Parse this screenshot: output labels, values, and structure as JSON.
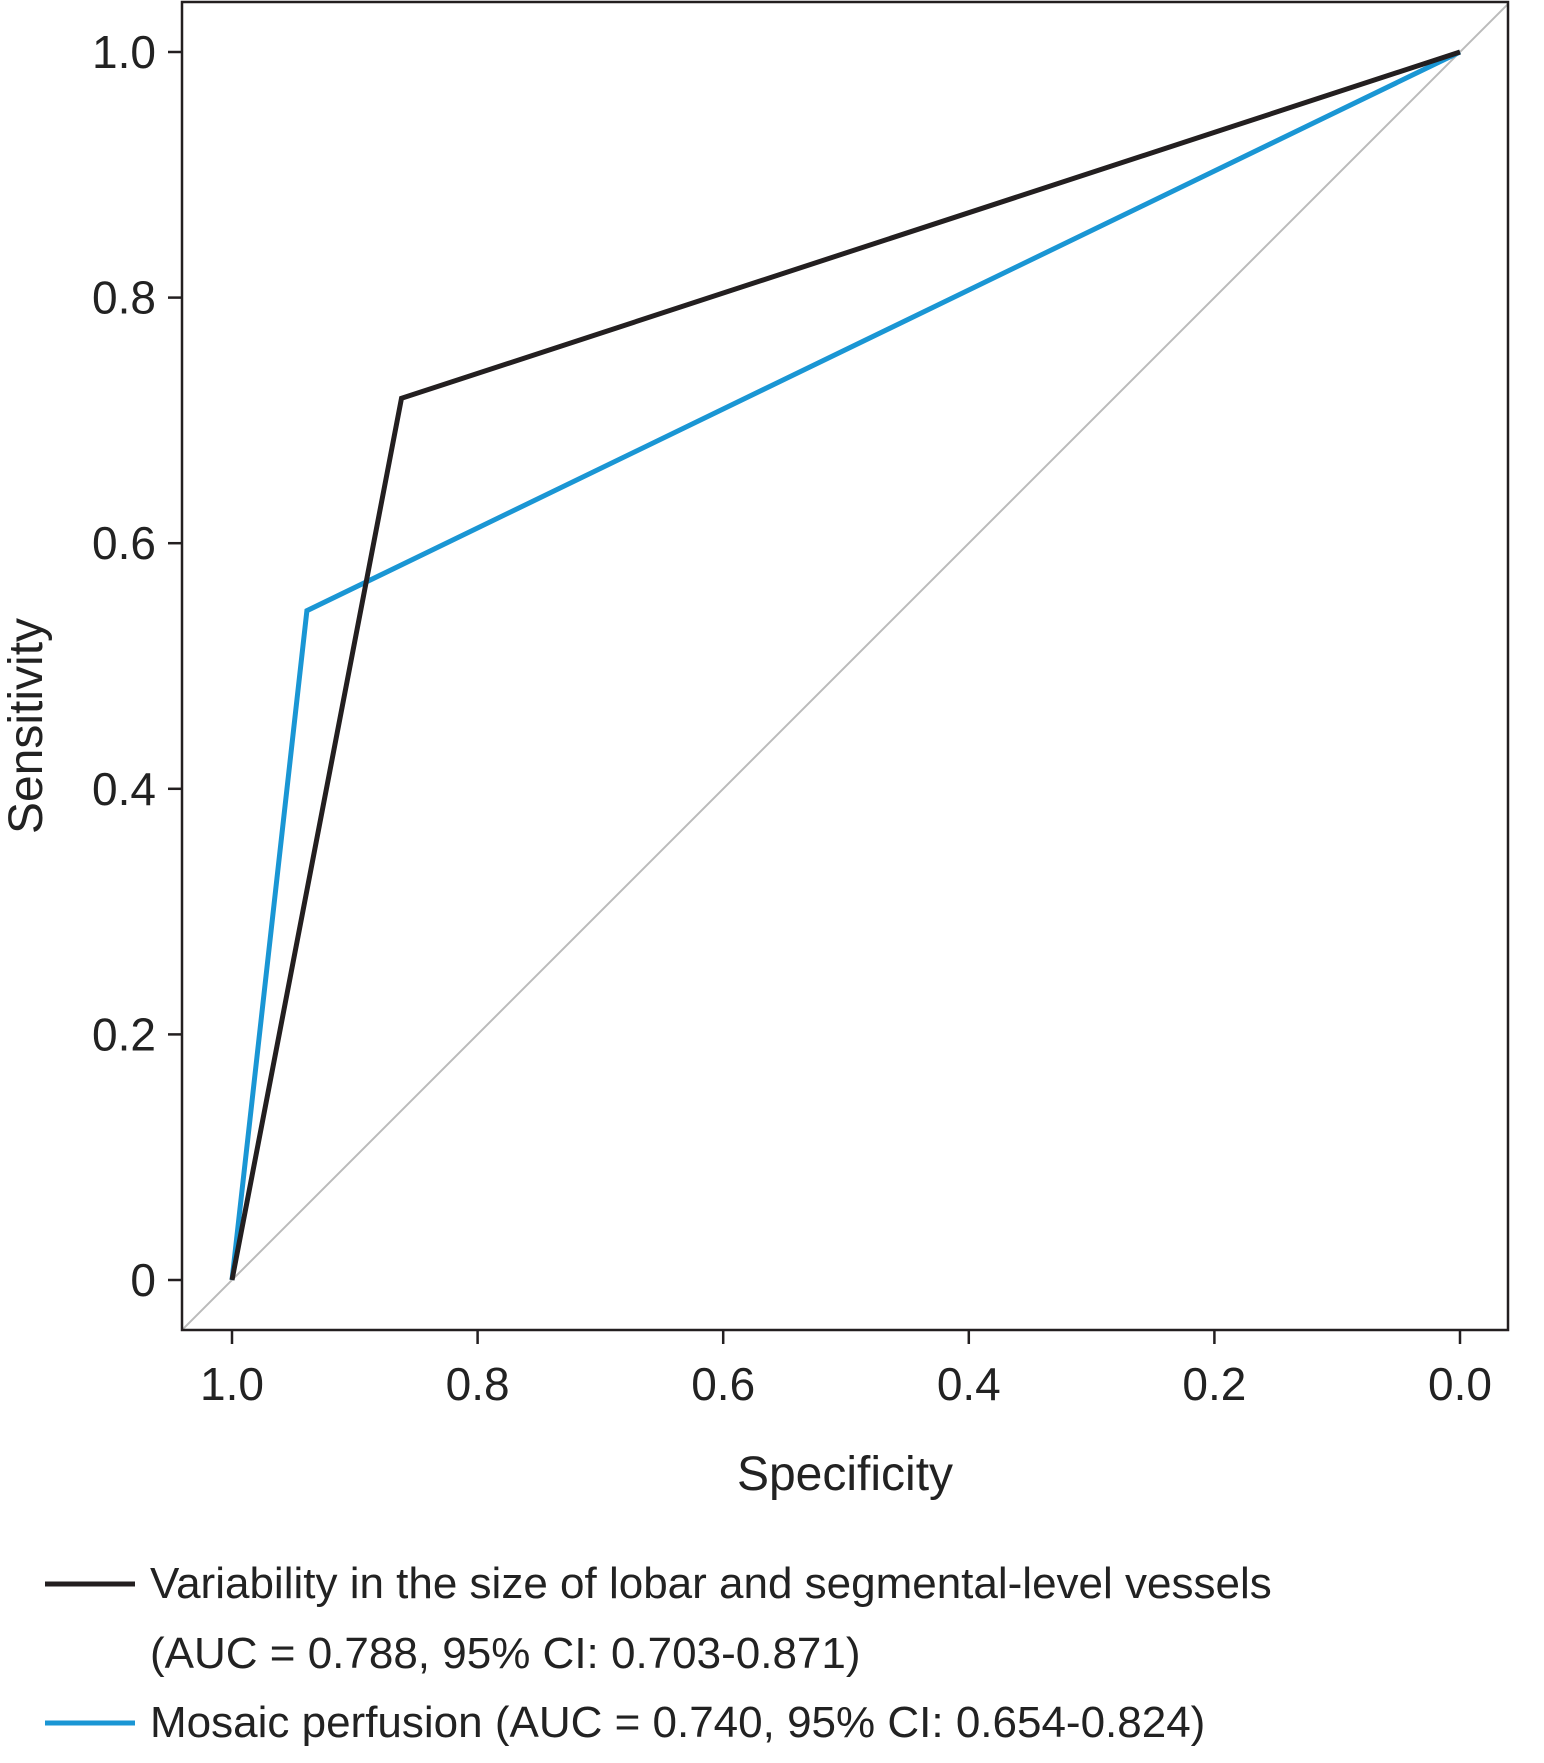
{
  "chart_data": {
    "type": "line",
    "title": "",
    "xlabel": "Specificity",
    "ylabel": "Sensitivity",
    "xlim": [
      1.0,
      0.0
    ],
    "ylim": [
      0,
      1.0
    ],
    "x_reversed": true,
    "grid": false,
    "legend_position": "bottom",
    "x_ticks": [
      "1.0",
      "0.8",
      "0.6",
      "0.4",
      "0.2",
      "0.0"
    ],
    "y_ticks": [
      "0",
      "0.2",
      "0.4",
      "0.6",
      "0.8",
      "1.0"
    ],
    "reference_line": {
      "points": [
        {
          "x": 1.0,
          "y": 0.0
        },
        {
          "x": 0.0,
          "y": 1.0
        }
      ],
      "color": "#bbbbbb"
    },
    "series": [
      {
        "name": "Variability in the size of lobar and segmental-level vessels",
        "legend_note": "(AUC = 0.788, 95% CI: 0.703-0.871)",
        "color": "#231f20",
        "points": [
          {
            "x": 1.0,
            "y": 0.0
          },
          {
            "x": 0.862,
            "y": 0.718
          },
          {
            "x": 0.0,
            "y": 1.0
          }
        ]
      },
      {
        "name": "Mosaic perfusion (AUC = 0.740, 95% CI: 0.654-0.824)",
        "legend_note": "",
        "color": "#1a96d4",
        "points": [
          {
            "x": 1.0,
            "y": 0.0
          },
          {
            "x": 0.939,
            "y": 0.545
          },
          {
            "x": 0.0,
            "y": 1.0
          }
        ]
      }
    ]
  }
}
